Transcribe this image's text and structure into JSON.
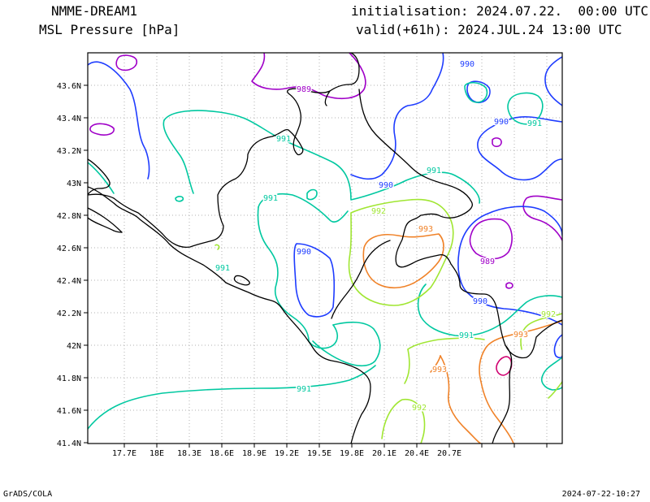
{
  "header": {
    "model": "NMME-DREAM1",
    "field": "MSL Pressure [hPa]",
    "init": "initialisation: 2024.07.22.  00:00 UTC",
    "valid": "valid(+61h): 2024.JUL.24 13:00 UTC"
  },
  "footer": {
    "left": "GrADS/COLA",
    "right": "2024-07-22-10:27"
  },
  "map": {
    "lat_labels": [
      "43.6N",
      "43.4N",
      "43.2N",
      "43N",
      "42.8N",
      "42.6N",
      "42.4N",
      "42.2N",
      "42N",
      "41.8N",
      "41.6N",
      "41.4N"
    ],
    "lon_labels": [
      "17.7E",
      "18E",
      "18.3E",
      "18.6E",
      "18.9E",
      "19.2E",
      "19.5E",
      "19.8E",
      "20.1E",
      "20.4E",
      "20.7E"
    ],
    "contour_colors": {
      "989": "#a000c8",
      "990": "#1e3cff",
      "991": "#00c8a0",
      "992": "#a0e632",
      "993": "#f08228",
      "994": "#d00070"
    },
    "contour_labels": [
      {
        "text": "989",
        "level": "989"
      },
      {
        "text": "990",
        "level": "990"
      },
      {
        "text": "990",
        "level": "990"
      },
      {
        "text": "991",
        "level": "991"
      },
      {
        "text": "991",
        "level": "991"
      },
      {
        "text": "991",
        "level": "991"
      },
      {
        "text": "991",
        "level": "991"
      },
      {
        "text": "990",
        "level": "990"
      },
      {
        "text": "992",
        "level": "992"
      },
      {
        "text": "993",
        "level": "993"
      },
      {
        "text": "989",
        "level": "989"
      },
      {
        "text": "990",
        "level": "990"
      },
      {
        "text": "991",
        "level": "991"
      },
      {
        "text": "991",
        "level": "991"
      },
      {
        "text": "992",
        "level": "992"
      },
      {
        "text": "993",
        "level": "993"
      },
      {
        "text": "993",
        "level": "993"
      },
      {
        "text": "991",
        "level": "991"
      },
      {
        "text": "992",
        "level": "992"
      },
      {
        "text": "990",
        "level": "990"
      }
    ]
  }
}
